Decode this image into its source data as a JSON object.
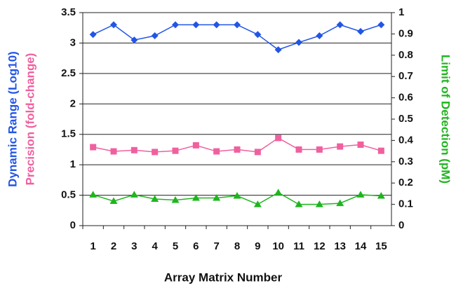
{
  "chart_data": {
    "type": "line",
    "categories": [
      "1",
      "2",
      "3",
      "4",
      "5",
      "6",
      "7",
      "8",
      "9",
      "10",
      "11",
      "12",
      "13",
      "14",
      "15"
    ],
    "xlabel": "Array Matrix Number",
    "series": [
      {
        "name": "Dynamic Range (Log10)",
        "color": "#2255e6",
        "marker": "diamond",
        "values": [
          3.14,
          3.3,
          3.05,
          3.12,
          3.3,
          3.3,
          3.3,
          3.3,
          3.14,
          2.89,
          3.01,
          3.12,
          3.3,
          3.19,
          3.3
        ]
      },
      {
        "name": "Precision (fold-change)",
        "color": "#f0609e",
        "marker": "square",
        "values": [
          1.29,
          1.22,
          1.24,
          1.21,
          1.23,
          1.32,
          1.22,
          1.25,
          1.21,
          1.44,
          1.25,
          1.25,
          1.3,
          1.33,
          1.23
        ]
      },
      {
        "name": "Limit of Detection (pM)",
        "color": "#1fb51f",
        "marker": "triangle",
        "axis": "y2",
        "values": [
          0.145,
          0.115,
          0.145,
          0.125,
          0.12,
          0.13,
          0.13,
          0.14,
          0.1,
          0.155,
          0.1,
          0.1,
          0.105,
          0.145,
          0.14
        ]
      }
    ],
    "ylim": [
      0,
      3.5
    ],
    "yticks": [
      0,
      0.5,
      1,
      1.5,
      2,
      2.5,
      3,
      3.5
    ],
    "y2lim": [
      0,
      1
    ],
    "y2ticks": [
      0,
      0.1,
      0.2,
      0.3,
      0.4,
      0.5,
      0.6,
      0.7,
      0.8,
      0.9,
      1
    ],
    "grid": true
  }
}
